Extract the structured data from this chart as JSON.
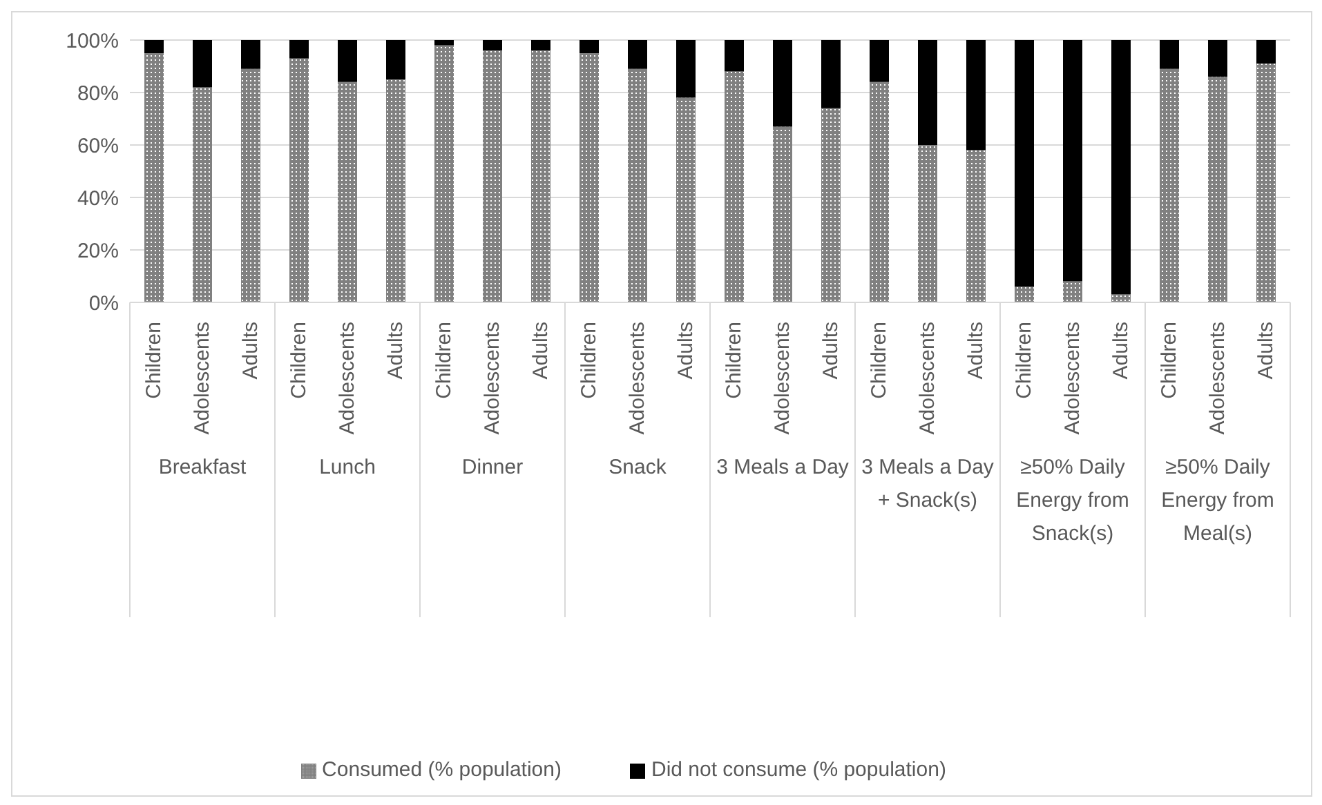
{
  "chart_data": {
    "type": "bar",
    "stacked": true,
    "categories": [
      "Children",
      "Adolescents",
      "Adults",
      "Children",
      "Adolescents",
      "Adults",
      "Children",
      "Adolescents",
      "Adults",
      "Children",
      "Adolescents",
      "Adults",
      "Children",
      "Adolescents",
      "Adults",
      "Children",
      "Adolescents",
      "Adults",
      "Children",
      "Adolescents",
      "Adults",
      "Children",
      "Adolescents",
      "Adults"
    ],
    "series": [
      {
        "name": "Consumed (% population)",
        "color": "#808080",
        "values": [
          95,
          82,
          89,
          93,
          84,
          85,
          98,
          96,
          96,
          95,
          89,
          78,
          88,
          67,
          74,
          84,
          60,
          58,
          6,
          8,
          3,
          89,
          86,
          91
        ]
      },
      {
        "name": "Did not consume (% population)",
        "color": "#000000",
        "values": [
          5,
          18,
          11,
          7,
          16,
          15,
          2,
          4,
          4,
          5,
          11,
          22,
          12,
          33,
          26,
          16,
          40,
          42,
          94,
          92,
          97,
          11,
          14,
          9
        ]
      }
    ],
    "annotations": [
      "Breakfast",
      "Lunch",
      "Dinner",
      "Snack",
      "3 Meals a Day",
      "3 Meals a Day + Snack(s)",
      "≥50% Daily Energy from Snack(s)",
      "≥50% Daily Energy from Meal(s)"
    ],
    "ylim": [
      0,
      100
    ],
    "yticks": [
      {
        "value": 0,
        "label": "0%"
      },
      {
        "value": 20,
        "label": "20%"
      },
      {
        "value": 40,
        "label": "40%"
      },
      {
        "value": 60,
        "label": "60%"
      },
      {
        "value": 80,
        "label": "80%"
      },
      {
        "value": 100,
        "label": "100%"
      }
    ],
    "grid": "y",
    "legend": "bottom"
  }
}
